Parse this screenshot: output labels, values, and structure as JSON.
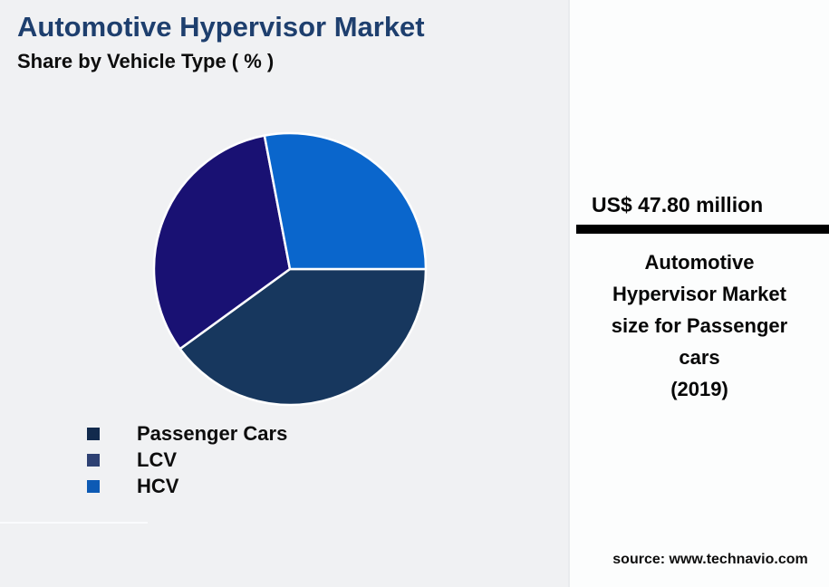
{
  "page": {
    "background_color": "#f0f1f3",
    "panel_background_color": "#fcfdfd"
  },
  "header": {
    "title": "Automotive Hypervisor Market",
    "title_color": "#1e3f6e",
    "subtitle": "Share by Vehicle Type ( % )"
  },
  "chart_data": {
    "type": "pie",
    "title": "Automotive Hypervisor Market",
    "subtitle": "Share by Vehicle Type ( % )",
    "unit": "%",
    "start_angle_deg": 0,
    "direction": "clockwise",
    "legend_position": "bottom-left",
    "series": [
      {
        "name": "Passenger Cars",
        "value": 40,
        "color": "#17375e",
        "legend_color": "#122a4d"
      },
      {
        "name": "LCV",
        "value": 32,
        "color": "#191173",
        "legend_color": "#2e4173"
      },
      {
        "name": "HCV",
        "value": 28,
        "color": "#0a66cc",
        "legend_color": "#0d5ab4"
      }
    ],
    "slice_separator_color": "#ffffff"
  },
  "side_panel": {
    "headline_value": "US$ 47.80 million",
    "divider_color": "#000000",
    "description": "Automotive\nHypervisor Market\nsize for Passenger\ncars\n(2019)",
    "source": "source: www.technavio.com"
  }
}
